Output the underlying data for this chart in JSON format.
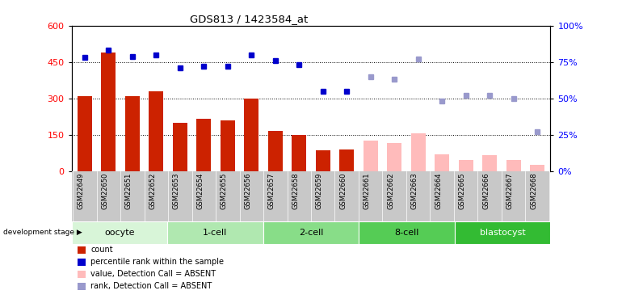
{
  "title": "GDS813 / 1423584_at",
  "samples": [
    "GSM22649",
    "GSM22650",
    "GSM22651",
    "GSM22652",
    "GSM22653",
    "GSM22654",
    "GSM22655",
    "GSM22656",
    "GSM22657",
    "GSM22658",
    "GSM22659",
    "GSM22660",
    "GSM22661",
    "GSM22662",
    "GSM22663",
    "GSM22664",
    "GSM22665",
    "GSM22666",
    "GSM22667",
    "GSM22668"
  ],
  "bar_values": [
    310,
    490,
    310,
    330,
    200,
    215,
    210,
    300,
    165,
    150,
    85,
    90,
    null,
    null,
    null,
    null,
    null,
    null,
    null,
    null
  ],
  "bar_absent_values": [
    null,
    null,
    null,
    null,
    null,
    null,
    null,
    null,
    null,
    null,
    null,
    null,
    125,
    115,
    155,
    70,
    45,
    65,
    45,
    25
  ],
  "rank_present": [
    78,
    83,
    79,
    80,
    71,
    72,
    72,
    80,
    76,
    73,
    55,
    55,
    null,
    null,
    null,
    null,
    null,
    null,
    null,
    null
  ],
  "rank_absent": [
    null,
    null,
    null,
    null,
    null,
    null,
    null,
    null,
    null,
    null,
    null,
    null,
    65,
    63,
    77,
    48,
    52,
    52,
    50,
    27
  ],
  "stages": [
    {
      "label": "oocyte",
      "start": 0,
      "end": 4,
      "color": "#d8f5d8"
    },
    {
      "label": "1-cell",
      "start": 4,
      "end": 8,
      "color": "#b0e8b0"
    },
    {
      "label": "2-cell",
      "start": 8,
      "end": 12,
      "color": "#88dd88"
    },
    {
      "label": "8-cell",
      "start": 12,
      "end": 16,
      "color": "#55cc55"
    },
    {
      "label": "blastocyst",
      "start": 16,
      "end": 20,
      "color": "#33bb33"
    }
  ],
  "ylim_left": [
    0,
    600
  ],
  "ylim_right": [
    0,
    100
  ],
  "yticks_left": [
    0,
    150,
    300,
    450,
    600
  ],
  "yticks_right": [
    0,
    25,
    50,
    75,
    100
  ],
  "bar_color": "#cc2200",
  "bar_absent_color": "#ffbbbb",
  "rank_present_color": "#0000cc",
  "rank_absent_color": "#9999cc",
  "bar_width": 0.6,
  "legend_items": [
    {
      "label": "count",
      "color": "#cc2200"
    },
    {
      "label": "percentile rank within the sample",
      "color": "#0000cc"
    },
    {
      "label": "value, Detection Call = ABSENT",
      "color": "#ffbbbb"
    },
    {
      "label": "rank, Detection Call = ABSENT",
      "color": "#9999cc"
    }
  ],
  "xlabel_gray": "#c8c8c8",
  "grid_color": "#000000",
  "dotted_lines": [
    150,
    300,
    450
  ]
}
